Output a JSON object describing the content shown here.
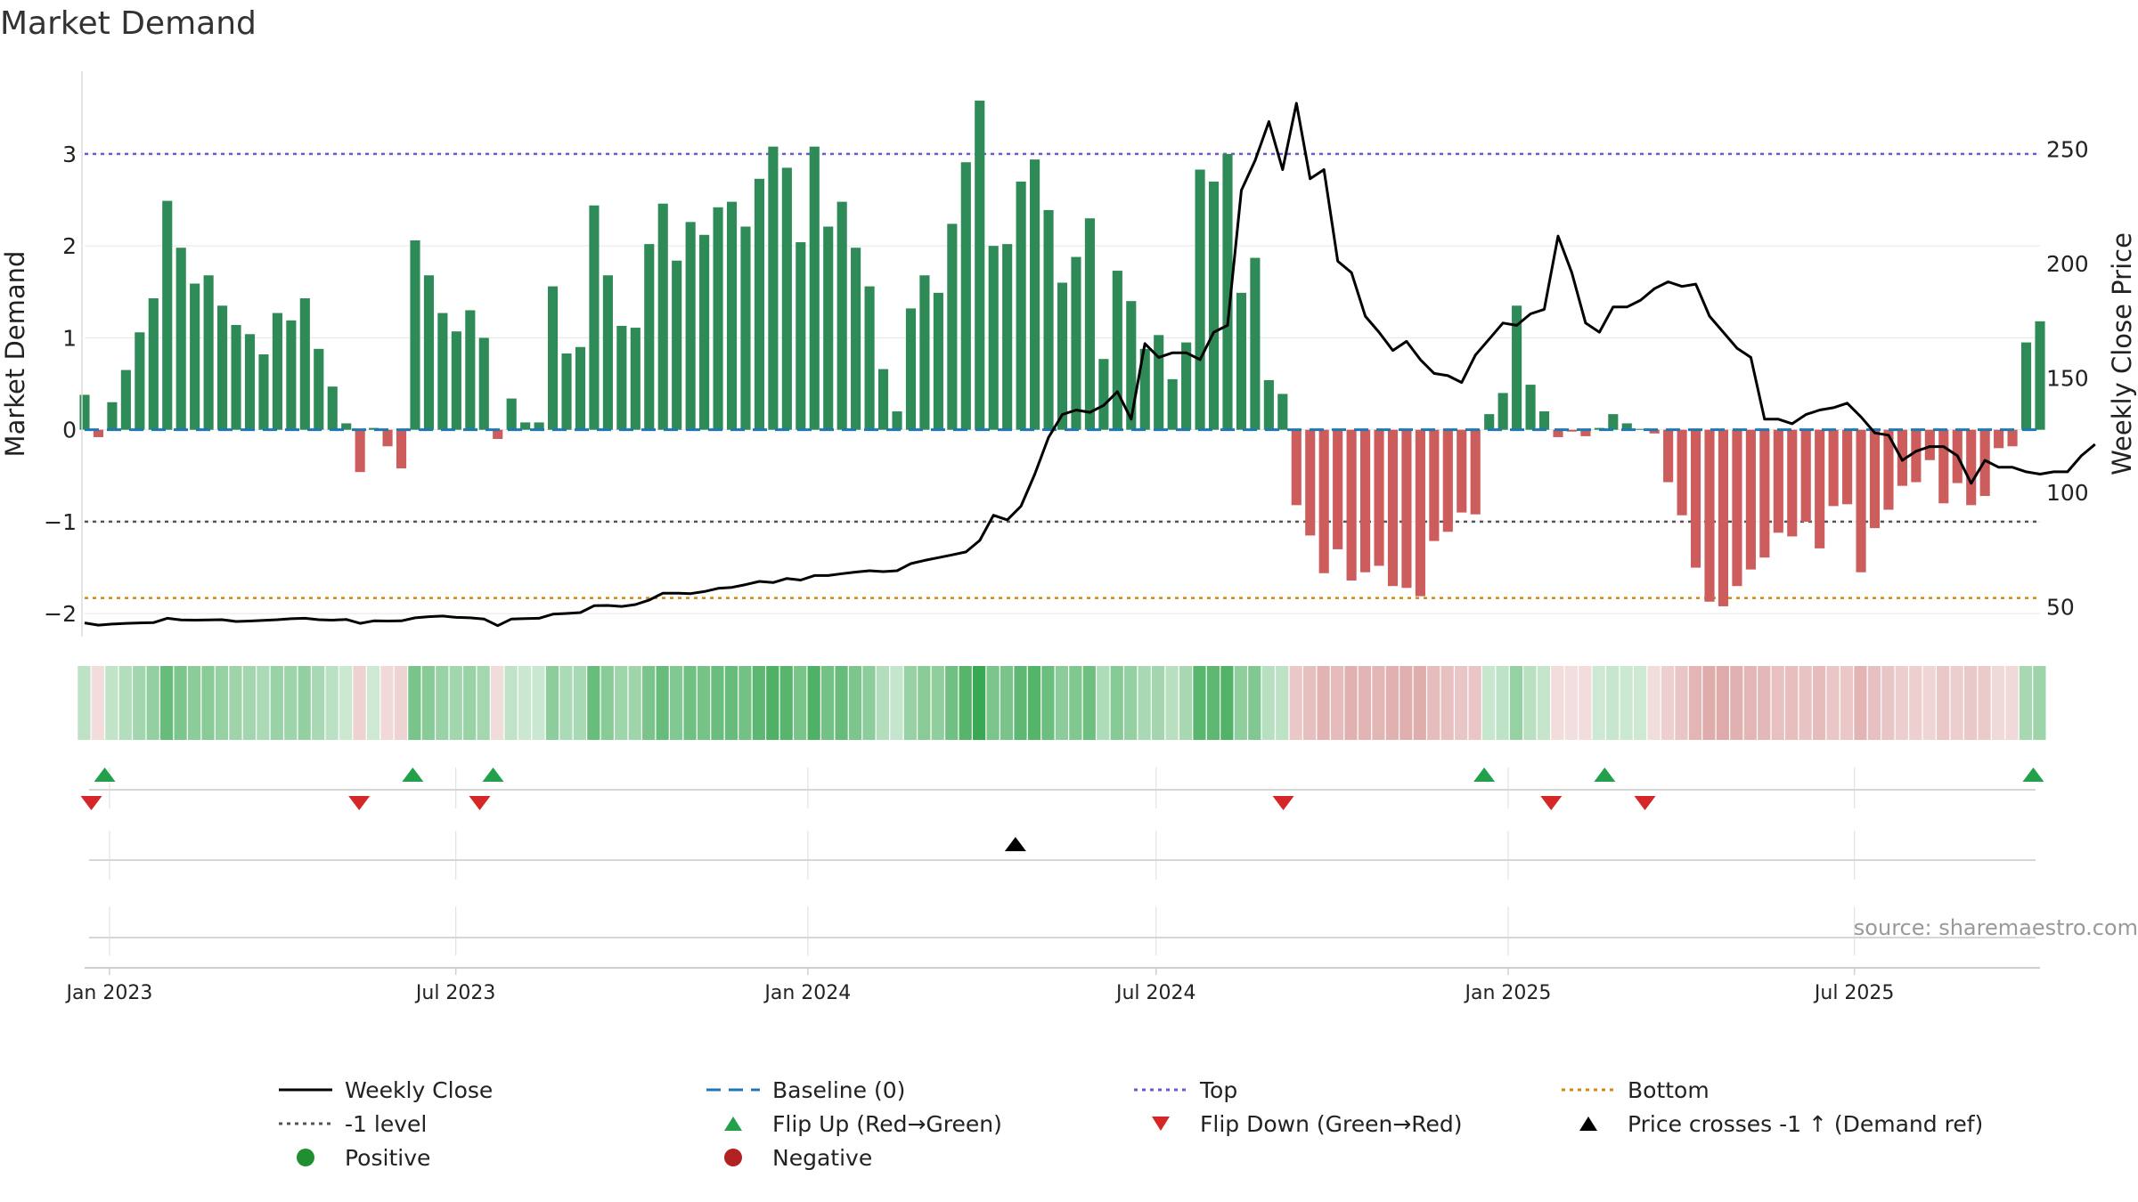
{
  "title": "Market Demand",
  "source": "source: sharemaestro.com",
  "colors": {
    "positive": "#2e8b57",
    "negative": "#cd5c5c",
    "price": "#000000",
    "baseline": "#1f77b4",
    "top": "#6a5acd",
    "bottom": "#d4880f",
    "minus1": "#555555",
    "flip_up": "#22a04a",
    "flip_down": "#d62728",
    "cross": "#000000",
    "legend_positive": "#1f8f2f",
    "legend_negative": "#b22222"
  },
  "chart_data": {
    "type": "bar",
    "title": "Market Demand",
    "ylabel": "Market Demand",
    "y2label": "Weekly Close Price",
    "ylim": [
      -2.25,
      3.9
    ],
    "y2lim": [
      37,
      284
    ],
    "yticks": [
      -2,
      -1,
      0,
      1,
      2,
      3
    ],
    "ytick_labels": [
      "−2",
      "−1",
      "0",
      "1",
      "2",
      "3"
    ],
    "y2ticks": [
      50,
      100,
      150,
      200,
      250
    ],
    "y2tick_labels": [
      "50",
      "100",
      "150",
      "200",
      "250"
    ],
    "x_start": "2022-12-19",
    "x_end": "2025-10-06",
    "xticks": [
      "2023-01-01",
      "2023-07-01",
      "2024-01-01",
      "2024-07-01",
      "2025-01-01",
      "2025-07-01"
    ],
    "xtick_labels": [
      "Jan 2023",
      "Jul 2023",
      "Jan 2024",
      "Jul 2024",
      "Jan 2025",
      "Jul 2025"
    ],
    "reference_lines": {
      "top": 3.0,
      "bottom": -1.83,
      "minus1": -1.0,
      "baseline": 0
    },
    "series": [
      {
        "name": "Market Demand",
        "axis": "left",
        "values": [
          0.38,
          -0.08,
          0.3,
          0.65,
          1.06,
          1.43,
          2.49,
          1.98,
          1.59,
          1.68,
          1.35,
          1.14,
          1.04,
          0.82,
          1.27,
          1.19,
          1.43,
          0.88,
          0.47,
          0.07,
          -0.46,
          0.02,
          -0.18,
          -0.42,
          2.06,
          1.68,
          1.27,
          1.07,
          1.3,
          1.0,
          -0.1,
          0.34,
          0.08,
          0.08,
          1.56,
          0.83,
          0.9,
          2.44,
          1.68,
          1.13,
          1.11,
          2.02,
          2.46,
          1.84,
          2.26,
          2.12,
          2.42,
          2.48,
          2.21,
          2.73,
          3.08,
          2.85,
          2.04,
          3.08,
          2.21,
          2.48,
          1.98,
          1.56,
          0.66,
          0.2,
          1.32,
          1.68,
          1.49,
          2.24,
          2.91,
          3.58,
          2.0,
          2.02,
          2.7,
          2.94,
          2.39,
          1.6,
          1.88,
          2.3,
          0.77,
          1.73,
          1.4,
          0.88,
          1.03,
          0.55,
          0.95,
          2.83,
          2.7,
          3.0,
          1.49,
          1.87,
          0.54,
          0.39,
          -0.82,
          -1.15,
          -1.56,
          -1.3,
          -1.64,
          -1.55,
          -1.48,
          -1.7,
          -1.72,
          -1.81,
          -1.21,
          -1.11,
          -0.9,
          -0.92,
          0.17,
          0.4,
          1.35,
          0.49,
          0.2,
          -0.08,
          -0.02,
          -0.07,
          0.02,
          0.17,
          0.07,
          0.01,
          -0.04,
          -0.57,
          -0.93,
          -1.5,
          -1.87,
          -1.92,
          -1.7,
          -1.52,
          -1.39,
          -1.12,
          -1.16,
          -1.0,
          -1.29,
          -0.83,
          -0.81,
          -1.55,
          -1.07,
          -0.87,
          -0.61,
          -0.57,
          -0.33,
          -0.8,
          -0.58,
          -0.82,
          -0.72,
          -0.2,
          -0.18,
          0.95,
          1.18
        ]
      },
      {
        "name": "Weekly Close",
        "axis": "right",
        "values": [
          43,
          42,
          42.5,
          42.8,
          43,
          43.1,
          45,
          44.3,
          44.2,
          44.3,
          44.4,
          43.6,
          43.8,
          44.1,
          44.4,
          44.8,
          45,
          44.4,
          44.2,
          44.5,
          42.8,
          43.9,
          43.8,
          43.9,
          45.2,
          45.7,
          46,
          45.4,
          45.2,
          44.7,
          41.8,
          44.7,
          44.9,
          45,
          46.8,
          47.1,
          47.5,
          50.5,
          50.6,
          50.2,
          51,
          53,
          56,
          56,
          55.8,
          56.7,
          58.1,
          58.5,
          59.7,
          61.1,
          60.6,
          62.4,
          61.7,
          63.7,
          63.7,
          64.5,
          65.2,
          65.8,
          65.4,
          65.8,
          68.9,
          70.3,
          71.5,
          72.7,
          74,
          79,
          90,
          88,
          94,
          108,
          124,
          134,
          136,
          135,
          138,
          144,
          132,
          165,
          159,
          161,
          161,
          158,
          170,
          173,
          232,
          245,
          262,
          241,
          270,
          237,
          241,
          201,
          196,
          177,
          170,
          162,
          166,
          158,
          152,
          151,
          148,
          160,
          167,
          174,
          173,
          178,
          180,
          212,
          196,
          174,
          170,
          181,
          181,
          184,
          189,
          192,
          190,
          191,
          177,
          170,
          163,
          159,
          132,
          132,
          130,
          134,
          136,
          137,
          139,
          133,
          126,
          125,
          114,
          118,
          120,
          120,
          116,
          104,
          114,
          111,
          111,
          109,
          108,
          109,
          109,
          116,
          121
        ]
      },
      {
        "name": "Baseline (0)",
        "axis": "left",
        "values": [
          0
        ]
      }
    ],
    "heat_strip": {
      "label": "demand intensity strip (one cell per week, colored by Market Demand)"
    },
    "events": {
      "flip_up": [
        "2022-12-26",
        "2023-06-05",
        "2023-07-17",
        "2024-12-16",
        "2025-02-17",
        "2025-09-29"
      ],
      "flip_down": [
        "2022-12-19",
        "2023-05-08",
        "2023-07-10",
        "2024-09-02",
        "2025-01-20",
        "2025-03-10"
      ],
      "price_cross_minus1": [
        "2024-04-15"
      ]
    },
    "legend": [
      {
        "key": "weekly_close",
        "label": "Weekly Close"
      },
      {
        "key": "baseline",
        "label": "Baseline (0)"
      },
      {
        "key": "top",
        "label": "Top"
      },
      {
        "key": "bottom",
        "label": "Bottom"
      },
      {
        "key": "minus1",
        "label": "-1 level"
      },
      {
        "key": "flip_up",
        "label": "Flip Up (Red→Green)"
      },
      {
        "key": "flip_down",
        "label": "Flip Down (Green→Red)"
      },
      {
        "key": "cross",
        "label": "Price crosses -1 ↑ (Demand ref)"
      },
      {
        "key": "positive",
        "label": "Positive"
      },
      {
        "key": "negative",
        "label": "Negative"
      }
    ]
  }
}
